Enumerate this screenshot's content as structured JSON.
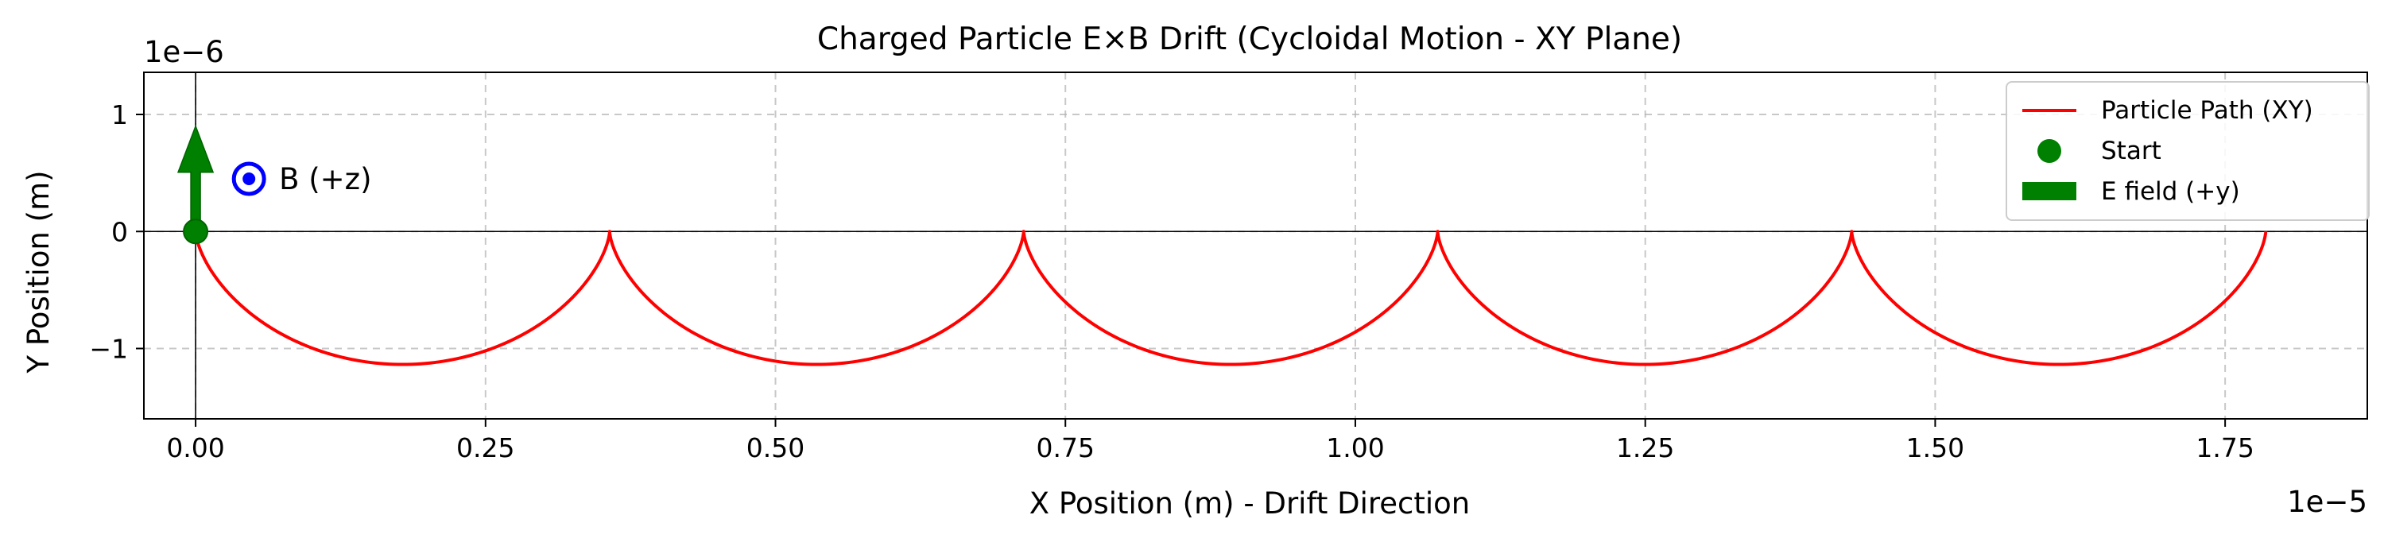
{
  "chart_data": {
    "type": "line",
    "title": "Charged Particle E×B Drift (Cycloidal Motion - XY Plane)",
    "xlabel": "X Position (m) - Drift Direction",
    "ylabel": "Y Position (m)",
    "x_multiplier_label": "1e−5",
    "y_multiplier_label": "1e−6",
    "x_scale": 1e-05,
    "y_scale": 1e-06,
    "xlim": [
      -0.0446,
      1.8726
    ],
    "ylim": [
      -1.6009,
      1.3599
    ],
    "xticks": [
      0.0,
      0.25,
      0.5,
      0.75,
      1.0,
      1.25,
      1.5,
      1.75
    ],
    "xtick_labels": [
      "0.00",
      "0.25",
      "0.50",
      "0.75",
      "1.00",
      "1.25",
      "1.50",
      "1.75"
    ],
    "yticks": [
      -1,
      0,
      1
    ],
    "ytick_labels": [
      "−1",
      "0",
      "1"
    ],
    "grid": true,
    "legend_position": "top-right",
    "cycloid": {
      "arch_count": 5,
      "arch_width": 0.357,
      "min_y": -1.136,
      "start": [
        0,
        0
      ]
    },
    "series": [
      {
        "name": "Particle Path (XY)",
        "kind": "line",
        "color": "#ff0000"
      },
      {
        "name": "Start",
        "kind": "marker",
        "color": "#008000"
      },
      {
        "name": "E field (+y)",
        "kind": "arrow",
        "color": "#008000",
        "from": [
          0,
          0
        ],
        "to": [
          0,
          0.9
        ]
      }
    ],
    "annotations": [
      {
        "text": "B (+z)",
        "x": 0.072,
        "y": 0.45,
        "color": "#0000ff",
        "marker_x": 0.046,
        "marker_y": 0.45
      }
    ]
  }
}
